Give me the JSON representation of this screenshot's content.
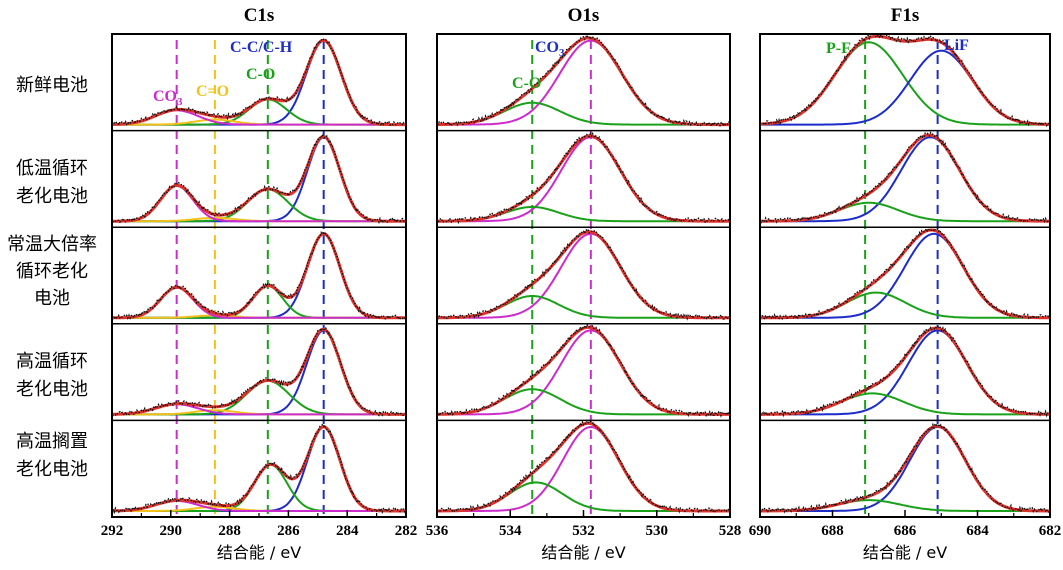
{
  "figure": {
    "row_labels": [
      [
        "新鲜电池"
      ],
      [
        "低温循环",
        "老化电池"
      ],
      [
        "常温大倍率",
        "循环老化",
        "电池"
      ],
      [
        "高温循环",
        "老化电池"
      ],
      [
        "高温搁置",
        "老化电池"
      ]
    ],
    "x_axis_label": "结合能 / eV",
    "colors": {
      "data": "#111111",
      "envelope": "#e0332c",
      "C-C/C-H": "#1c2cc9",
      "C-O": "#1aa11a",
      "CO3": "#cc2ccc",
      "C=O": "#f2c21a",
      "LiF": "#1c2cc9",
      "P-F": "#1aa11a"
    }
  },
  "chart_data": [
    {
      "type": "line",
      "title": "C1s",
      "xlabel": "结合能 / eV",
      "xlim": [
        292,
        282
      ],
      "xticks": [
        292,
        290,
        288,
        286,
        284,
        282
      ],
      "reference_lines": [
        {
          "x": 289.8,
          "color": "CO3"
        },
        {
          "x": 288.5,
          "color": "C=O"
        },
        {
          "x": 286.7,
          "color": "C-O"
        },
        {
          "x": 284.8,
          "color": "C-C/C-H"
        }
      ],
      "annotations": [
        {
          "text": "C-C/C-H",
          "color": "C-C/C-H"
        },
        {
          "text": "C-O",
          "color": "C-O"
        },
        {
          "text": "CO",
          "sub": "3",
          "color": "CO3"
        },
        {
          "text": "C=O",
          "color": "C=O"
        }
      ],
      "spectra": [
        {
          "label": "新鲜电池",
          "peaks": [
            {
              "name": "C-C/C-H",
              "center": 284.8,
              "height": 1.0,
              "fwhm": 1.4
            },
            {
              "name": "C-O",
              "center": 286.7,
              "height": 0.3,
              "fwhm": 1.5
            },
            {
              "name": "C=O",
              "center": 288.5,
              "height": 0.06,
              "fwhm": 1.6
            },
            {
              "name": "CO3",
              "center": 289.8,
              "height": 0.17,
              "fwhm": 1.7
            }
          ]
        },
        {
          "label": "低温循环老化电池",
          "peaks": [
            {
              "name": "C-C/C-H",
              "center": 284.8,
              "height": 1.0,
              "fwhm": 1.3
            },
            {
              "name": "C-O",
              "center": 286.7,
              "height": 0.38,
              "fwhm": 1.6
            },
            {
              "name": "C=O",
              "center": 288.5,
              "height": 0.04,
              "fwhm": 1.6
            },
            {
              "name": "CO3",
              "center": 289.8,
              "height": 0.42,
              "fwhm": 1.3
            }
          ]
        },
        {
          "label": "常温大倍率循环老化电池",
          "peaks": [
            {
              "name": "C-C/C-H",
              "center": 284.8,
              "height": 1.0,
              "fwhm": 1.3
            },
            {
              "name": "C-O",
              "center": 286.7,
              "height": 0.38,
              "fwhm": 1.2
            },
            {
              "name": "C=O",
              "center": 288.5,
              "height": 0.03,
              "fwhm": 1.5
            },
            {
              "name": "CO3",
              "center": 289.8,
              "height": 0.36,
              "fwhm": 1.3
            }
          ]
        },
        {
          "label": "高温循环老化电池",
          "peaks": [
            {
              "name": "C-C/C-H",
              "center": 284.8,
              "height": 1.0,
              "fwhm": 1.35
            },
            {
              "name": "C-O",
              "center": 286.7,
              "height": 0.4,
              "fwhm": 1.7
            },
            {
              "name": "C=O",
              "center": 288.5,
              "height": 0.05,
              "fwhm": 1.6
            },
            {
              "name": "CO3",
              "center": 289.8,
              "height": 0.12,
              "fwhm": 1.7
            }
          ]
        },
        {
          "label": "高温搁置老化电池",
          "peaks": [
            {
              "name": "C-C/C-H",
              "center": 284.8,
              "height": 1.0,
              "fwhm": 1.3
            },
            {
              "name": "C-O",
              "center": 286.6,
              "height": 0.55,
              "fwhm": 1.3
            },
            {
              "name": "C=O",
              "center": 288.5,
              "height": 0.05,
              "fwhm": 1.6
            },
            {
              "name": "CO3",
              "center": 289.8,
              "height": 0.12,
              "fwhm": 1.7
            }
          ]
        }
      ]
    },
    {
      "type": "line",
      "title": "O1s",
      "xlabel": "结合能 / eV",
      "xlim": [
        536,
        528
      ],
      "xticks": [
        536,
        534,
        532,
        530,
        528
      ],
      "reference_lines": [
        {
          "x": 533.4,
          "color": "C-O"
        },
        {
          "x": 531.8,
          "color": "CO3"
        }
      ],
      "annotations": [
        {
          "text": "CO",
          "sub": "3",
          "color": "C-C/C-H"
        },
        {
          "text": "C-O",
          "color": "C-O"
        }
      ],
      "spectra": [
        {
          "label": "新鲜电池",
          "peaks": [
            {
              "name": "CO3",
              "center": 531.8,
              "height": 1.0,
              "fwhm": 2.0
            },
            {
              "name": "C-O",
              "center": 533.4,
              "height": 0.26,
              "fwhm": 1.8
            }
          ]
        },
        {
          "label": "低温循环老化电池",
          "peaks": [
            {
              "name": "CO3",
              "center": 531.8,
              "height": 1.0,
              "fwhm": 1.9
            },
            {
              "name": "C-O",
              "center": 533.4,
              "height": 0.17,
              "fwhm": 1.7
            }
          ]
        },
        {
          "label": "常温大倍率循环老化电池",
          "peaks": [
            {
              "name": "CO3",
              "center": 531.8,
              "height": 1.0,
              "fwhm": 1.9
            },
            {
              "name": "C-O",
              "center": 533.4,
              "height": 0.26,
              "fwhm": 1.7
            }
          ]
        },
        {
          "label": "高温循环老化电池",
          "peaks": [
            {
              "name": "CO3",
              "center": 531.8,
              "height": 1.0,
              "fwhm": 1.9
            },
            {
              "name": "C-O",
              "center": 533.4,
              "height": 0.3,
              "fwhm": 1.8
            }
          ]
        },
        {
          "label": "高温搁置老化电池",
          "peaks": [
            {
              "name": "CO3",
              "center": 531.8,
              "height": 1.0,
              "fwhm": 1.8
            },
            {
              "name": "C-O",
              "center": 533.3,
              "height": 0.34,
              "fwhm": 1.7
            }
          ]
        }
      ]
    },
    {
      "type": "line",
      "title": "F1s",
      "xlabel": "结合能 / eV",
      "xlim": [
        690,
        682
      ],
      "xticks": [
        690,
        688,
        686,
        684,
        682
      ],
      "reference_lines": [
        {
          "x": 687.1,
          "color": "P-F"
        },
        {
          "x": 685.1,
          "color": "LiF"
        }
      ],
      "annotations": [
        {
          "text": "P-F",
          "color": "P-F"
        },
        {
          "text": "LiF",
          "color": "LiF"
        }
      ],
      "spectra": [
        {
          "label": "新鲜电池",
          "peaks": [
            {
              "name": "P-F",
              "center": 687.0,
              "height": 0.98,
              "fwhm": 2.2
            },
            {
              "name": "LiF",
              "center": 685.0,
              "height": 0.88,
              "fwhm": 2.0
            }
          ]
        },
        {
          "label": "低温循环老化电池",
          "peaks": [
            {
              "name": "LiF",
              "center": 685.3,
              "height": 1.0,
              "fwhm": 1.9
            },
            {
              "name": "P-F",
              "center": 687.0,
              "height": 0.22,
              "fwhm": 1.9
            }
          ]
        },
        {
          "label": "常温大倍率循环老化电池",
          "peaks": [
            {
              "name": "LiF",
              "center": 685.2,
              "height": 1.0,
              "fwhm": 1.9
            },
            {
              "name": "P-F",
              "center": 686.8,
              "height": 0.3,
              "fwhm": 1.9
            }
          ]
        },
        {
          "label": "高温循环老化电池",
          "peaks": [
            {
              "name": "LiF",
              "center": 685.1,
              "height": 1.0,
              "fwhm": 1.9
            },
            {
              "name": "P-F",
              "center": 686.9,
              "height": 0.25,
              "fwhm": 2.0
            }
          ]
        },
        {
          "label": "高温搁置老化电池",
          "peaks": [
            {
              "name": "LiF",
              "center": 685.1,
              "height": 1.0,
              "fwhm": 1.8
            },
            {
              "name": "P-F",
              "center": 687.0,
              "height": 0.13,
              "fwhm": 2.0
            }
          ]
        }
      ]
    }
  ]
}
